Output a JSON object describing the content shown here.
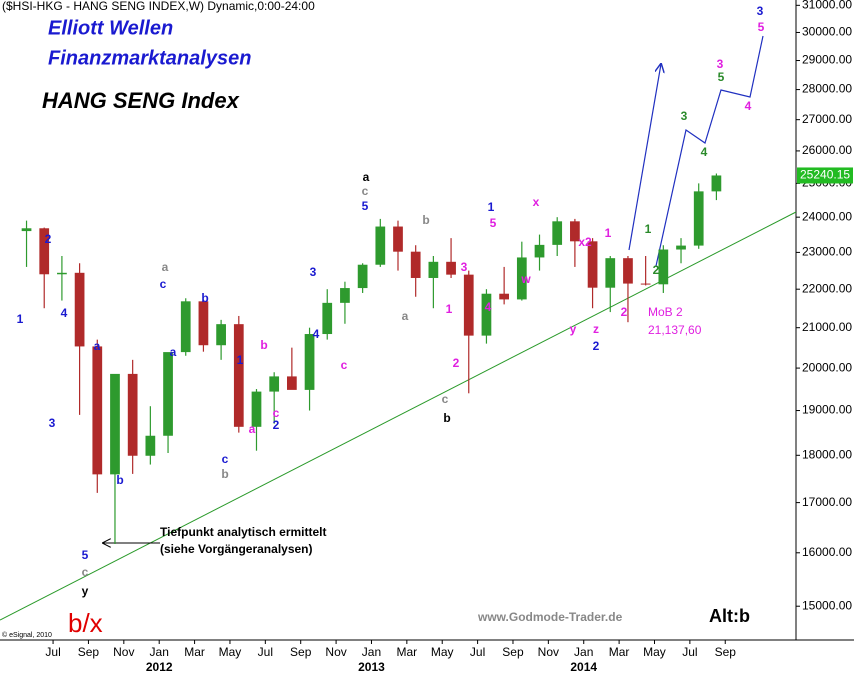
{
  "chart_data": {
    "type": "candlestick",
    "title": "($HSI-HKG - HANG SENG INDEX,W) Dynamic,0:00-24:00",
    "subtitles": [
      "Elliott Wellen",
      "Finanzmarktanalysen"
    ],
    "index_name": "HANG SENG Index",
    "note": [
      "Tiefpunkt analytisch ermittelt",
      "(siehe Vorgängeranalysen)"
    ],
    "watermark": "www.Godmode-Trader.de",
    "alt_label": "Alt:b",
    "wave_label": "b/x",
    "copyright": "© eSignal, 2010",
    "mob_label": "MoB 2",
    "mob_value": "21,137,60",
    "x": [
      "2011-05",
      "2011-06",
      "2011-07",
      "2011-08",
      "2011-09",
      "2011-10",
      "2011-11",
      "2011-12",
      "2012-01",
      "2012-02",
      "2012-03",
      "2012-04",
      "2012-05",
      "2012-06",
      "2012-07",
      "2012-08",
      "2012-09",
      "2012-10",
      "2012-11",
      "2012-12",
      "2013-01",
      "2013-02",
      "2013-03",
      "2013-04",
      "2013-05",
      "2013-06",
      "2013-07",
      "2013-08",
      "2013-09",
      "2013-10",
      "2013-11",
      "2013-12",
      "2014-01",
      "2014-02",
      "2014-03",
      "2014-04",
      "2014-05",
      "2014-06",
      "2014-07",
      "2014-08"
    ],
    "open": [
      23600,
      23680,
      22400,
      22440,
      20530,
      17590,
      19860,
      17990,
      18430,
      20390,
      21680,
      20560,
      21090,
      18630,
      19440,
      19800,
      19480,
      20840,
      21640,
      22030,
      22660,
      23730,
      23020,
      22300,
      22740,
      22390,
      20800,
      21880,
      21730,
      22860,
      23210,
      23880,
      23310,
      22040,
      22840,
      22150,
      22130,
      23080,
      23190,
      24760
    ],
    "high": [
      23900,
      23700,
      22900,
      22700,
      20700,
      19800,
      20200,
      19100,
      20300,
      21760,
      21700,
      21200,
      21300,
      19500,
      19900,
      20500,
      21000,
      22000,
      22200,
      22700,
      23950,
      23900,
      23200,
      22900,
      23400,
      22500,
      22000,
      22600,
      23300,
      23500,
      24000,
      23950,
      23400,
      22900,
      22900,
      22900,
      23200,
      23400,
      25000,
      25300
    ],
    "low": [
      22600,
      21500,
      21700,
      18900,
      17200,
      16170,
      17600,
      17800,
      18050,
      20300,
      20400,
      20200,
      18500,
      18100,
      18700,
      19500,
      19000,
      20700,
      21100,
      21900,
      22600,
      22500,
      21800,
      21500,
      22300,
      19400,
      20600,
      21600,
      21700,
      22500,
      22900,
      22600,
      21500,
      21400,
      21140,
      22100,
      21900,
      22700,
      23100,
      24500
    ],
    "close": [
      23680,
      22400,
      22440,
      20530,
      17590,
      19860,
      17990,
      18430,
      20390,
      21680,
      20560,
      21090,
      18630,
      19440,
      19800,
      19480,
      20840,
      21640,
      22030,
      22660,
      23730,
      23020,
      22300,
      22740,
      22390,
      20800,
      21880,
      21730,
      22860,
      23210,
      23880,
      23310,
      22040,
      22840,
      22150,
      22130,
      23080,
      23190,
      24760,
      25240.15
    ],
    "up_color": "#2e9a2e",
    "down_color": "#b02a2a",
    "last_price": 25240.15,
    "last_price_color": "#22bb22",
    "xlim": [
      "2011-04",
      "2015-01"
    ],
    "xticks": [
      {
        "value": "2011-07",
        "label": "Jul"
      },
      {
        "value": "2011-09",
        "label": "Sep"
      },
      {
        "value": "2011-11",
        "label": "Nov"
      },
      {
        "value": "2012-01",
        "label": "Jan"
      },
      {
        "value": "2012-03",
        "label": "Mar"
      },
      {
        "value": "2012-05",
        "label": "May"
      },
      {
        "value": "2012-07",
        "label": "Jul"
      },
      {
        "value": "2012-09",
        "label": "Sep"
      },
      {
        "value": "2012-11",
        "label": "Nov"
      },
      {
        "value": "2013-01",
        "label": "Jan"
      },
      {
        "value": "2013-03",
        "label": "Mar"
      },
      {
        "value": "2013-05",
        "label": "May"
      },
      {
        "value": "2013-07",
        "label": "Jul"
      },
      {
        "value": "2013-09",
        "label": "Sep"
      },
      {
        "value": "2013-11",
        "label": "Nov"
      },
      {
        "value": "2014-01",
        "label": "Jan"
      },
      {
        "value": "2014-03",
        "label": "Mar"
      },
      {
        "value": "2014-05",
        "label": "May"
      },
      {
        "value": "2014-07",
        "label": "Jul"
      },
      {
        "value": "2014-09",
        "label": "Sep"
      }
    ],
    "year_ticks": [
      {
        "value": "2012-01",
        "label": "2012"
      },
      {
        "value": "2013-01",
        "label": "2013"
      },
      {
        "value": "2014-01",
        "label": "2014"
      }
    ],
    "ylim": [
      14400,
      31200
    ],
    "log_y": true,
    "yticks": [
      {
        "value": 15000,
        "label": "15000.00"
      },
      {
        "value": 16000,
        "label": "16000.00"
      },
      {
        "value": 17000,
        "label": "17000.00"
      },
      {
        "value": 18000,
        "label": "18000.00"
      },
      {
        "value": 19000,
        "label": "19000.00"
      },
      {
        "value": 20000,
        "label": "20000.00"
      },
      {
        "value": 21000,
        "label": "21000.00"
      },
      {
        "value": 22000,
        "label": "22000.00"
      },
      {
        "value": 23000,
        "label": "23000.00"
      },
      {
        "value": 24000,
        "label": "24000.00"
      },
      {
        "value": 25000,
        "label": "25000.00"
      },
      {
        "value": 26000,
        "label": "26000.00"
      },
      {
        "value": 27000,
        "label": "27000.00"
      },
      {
        "value": 28000,
        "label": "28000.00"
      },
      {
        "value": 29000,
        "label": "29000.00"
      },
      {
        "value": 30000,
        "label": "30000.00"
      },
      {
        "value": 31000,
        "label": "31000.00"
      }
    ],
    "annotations": [
      {
        "text": "2",
        "color": "#1a1ad0"
      },
      {
        "text": "1",
        "color": "#1a1ad0"
      },
      {
        "text": "4",
        "color": "#1a1ad0"
      },
      {
        "text": "3",
        "color": "#1a1ad0"
      },
      {
        "text": "a",
        "color": "#1a1ad0"
      },
      {
        "text": "b",
        "color": "#1a1ad0"
      },
      {
        "text": "5",
        "color": "#1a1ad0"
      },
      {
        "text": "c",
        "color": "#888888"
      },
      {
        "text": "y",
        "color": "#000000"
      },
      {
        "text": "a",
        "color": "#888888"
      },
      {
        "text": "c",
        "color": "#1a1ad0"
      },
      {
        "text": "b",
        "color": "#1a1ad0"
      },
      {
        "text": "a",
        "color": "#1a1ad0"
      },
      {
        "text": "1",
        "color": "#1a1ad0"
      },
      {
        "text": "b",
        "color": "#e020e0"
      },
      {
        "text": "c",
        "color": "#e020e0"
      },
      {
        "text": "2",
        "color": "#1a1ad0"
      },
      {
        "text": "a",
        "color": "#e020e0"
      },
      {
        "text": "c",
        "color": "#1a1ad0"
      },
      {
        "text": "b",
        "color": "#888888"
      },
      {
        "text": "3",
        "color": "#1a1ad0"
      },
      {
        "text": "4",
        "color": "#1a1ad0"
      },
      {
        "text": "c",
        "color": "#e020e0"
      },
      {
        "text": "a",
        "color": "#000000"
      },
      {
        "text": "c",
        "color": "#888888"
      },
      {
        "text": "5",
        "color": "#1a1ad0"
      },
      {
        "text": "b",
        "color": "#888888"
      },
      {
        "text": "a",
        "color": "#888888"
      },
      {
        "text": "1",
        "color": "#e020e0"
      },
      {
        "text": "2",
        "color": "#e020e0"
      },
      {
        "text": "c",
        "color": "#888888"
      },
      {
        "text": "b",
        "color": "#000000"
      },
      {
        "text": "3",
        "color": "#e020e0"
      },
      {
        "text": "4",
        "color": "#e020e0"
      },
      {
        "text": "1",
        "color": "#1a1ad0"
      },
      {
        "text": "5",
        "color": "#e020e0"
      },
      {
        "text": "x",
        "color": "#e020e0"
      },
      {
        "text": "w",
        "color": "#e020e0"
      },
      {
        "text": "x2",
        "color": "#e020e0"
      },
      {
        "text": "y",
        "color": "#e020e0"
      },
      {
        "text": "z",
        "color": "#e020e0"
      },
      {
        "text": "2",
        "color": "#1a1ad0"
      },
      {
        "text": "1",
        "color": "#e020e0"
      },
      {
        "text": "2",
        "color": "#e020e0"
      },
      {
        "text": "1",
        "color": "#2a8a2a"
      },
      {
        "text": "2",
        "color": "#2a8a2a"
      },
      {
        "text": "3",
        "color": "#2a8a2a"
      },
      {
        "text": "4",
        "color": "#2a8a2a"
      },
      {
        "text": "3",
        "color": "#e020e0"
      },
      {
        "text": "5",
        "color": "#2a8a2a"
      },
      {
        "text": "4",
        "color": "#e020e0"
      },
      {
        "text": "3",
        "color": "#1a1ad0"
      },
      {
        "text": "5",
        "color": "#e020e0"
      }
    ]
  }
}
